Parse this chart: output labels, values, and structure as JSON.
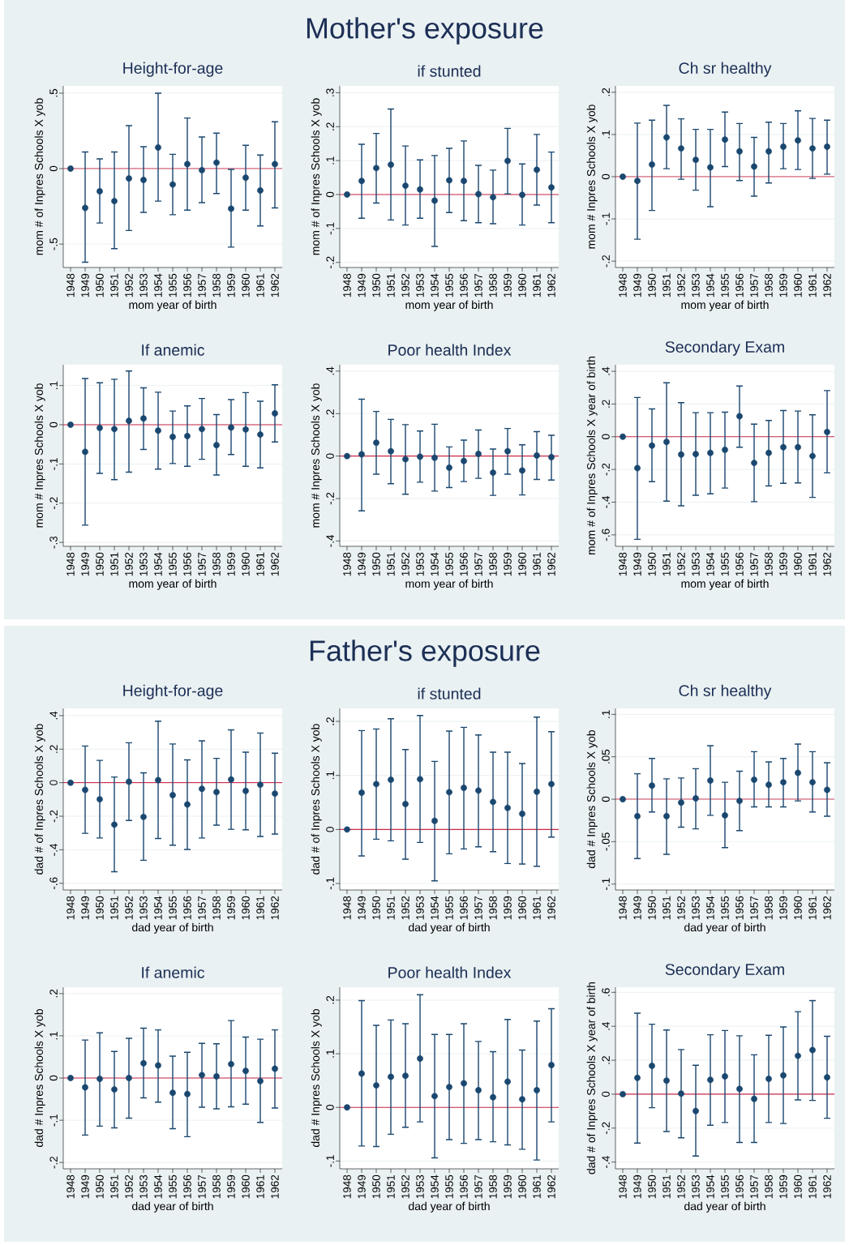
{
  "chart_data": [
    {
      "type": "other",
      "title": "Mother's exposure"
    },
    {
      "type": "scatter",
      "title": "Height-for-age",
      "xlabel": "mom year of birth",
      "ylabel": "mom # of Inpres Schools X yob",
      "categories": [
        "1948",
        "1949",
        "1950",
        "1951",
        "1952",
        "1953",
        "1954",
        "1955",
        "1956",
        "1957",
        "1958",
        "1959",
        "1960",
        "1961",
        "1962"
      ],
      "values": [
        0,
        -0.26,
        -0.15,
        -0.215,
        -0.065,
        -0.075,
        0.14,
        -0.105,
        0.03,
        -0.01,
        0.04,
        -0.265,
        -0.06,
        -0.145,
        0.03
      ],
      "errors": [
        null,
        [
          -0.62,
          0.11
        ],
        [
          -0.36,
          0.065
        ],
        [
          -0.53,
          0.11
        ],
        [
          -0.41,
          0.285
        ],
        [
          -0.29,
          0.145
        ],
        [
          -0.215,
          0.5
        ],
        [
          -0.305,
          0.095
        ],
        [
          -0.275,
          0.335
        ],
        [
          -0.225,
          0.21
        ],
        [
          -0.165,
          0.235
        ],
        [
          -0.52,
          -0.005
        ],
        [
          -0.275,
          0.155
        ],
        [
          -0.38,
          0.09
        ],
        [
          -0.26,
          0.31
        ]
      ],
      "color": "#1a476f",
      "marker": "circle",
      "ylim": [
        -0.655,
        0.548
      ],
      "yticks": [
        {
          "value": -0.5,
          "label": "-.5"
        },
        0,
        {
          "value": 0.5,
          "label": ".5"
        }
      ],
      "grid": "y",
      "ref_lines": [
        {
          "axis": "y",
          "value": 0,
          "color": "#cc2a48"
        }
      ]
    },
    {
      "type": "scatter",
      "title": "if stunted",
      "xlabel": "mom year of birth",
      "ylabel": "mom # of Inpres Schools X yob",
      "categories": [
        "1948",
        "1949",
        "1950",
        "1951",
        "1952",
        "1953",
        "1954",
        "1955",
        "1956",
        "1957",
        "1958",
        "1959",
        "1960",
        "1961",
        "1962"
      ],
      "values": [
        0,
        0.04,
        0.078,
        0.088,
        0.026,
        0.015,
        -0.018,
        0.042,
        0.04,
        0.001,
        -0.008,
        0.099,
        -0.001,
        0.073,
        0.021
      ],
      "errors": [
        null,
        [
          -0.07,
          0.148
        ],
        [
          -0.025,
          0.18
        ],
        [
          -0.075,
          0.252
        ],
        [
          -0.09,
          0.143
        ],
        [
          -0.07,
          0.102
        ],
        [
          -0.153,
          0.115
        ],
        [
          -0.053,
          0.136
        ],
        [
          -0.077,
          0.158
        ],
        [
          -0.083,
          0.086
        ],
        [
          -0.086,
          0.072
        ],
        [
          0.002,
          0.195
        ],
        [
          -0.09,
          0.09
        ],
        [
          -0.031,
          0.177
        ],
        [
          -0.083,
          0.125
        ]
      ],
      "color": "#1a476f",
      "marker": "circle",
      "ylim": [
        -0.215,
        0.32
      ],
      "yticks": [
        {
          "value": -0.2,
          "label": "-.2"
        },
        {
          "value": -0.1,
          "label": "-.1"
        },
        0,
        {
          "value": 0.1,
          "label": ".1"
        },
        {
          "value": 0.2,
          "label": ".2"
        },
        {
          "value": 0.3,
          "label": ".3"
        }
      ],
      "grid": "y",
      "ref_lines": [
        {
          "axis": "y",
          "value": 0,
          "color": "#cc2a48"
        }
      ]
    },
    {
      "type": "scatter",
      "title": "Ch sr healthy",
      "xlabel": "mom year of birth",
      "ylabel": "mom # Inpres Schools X yob",
      "categories": [
        "1948",
        "1949",
        "1950",
        "1951",
        "1952",
        "1953",
        "1954",
        "1955",
        "1956",
        "1957",
        "1958",
        "1959",
        "1960",
        "1961",
        "1962"
      ],
      "values": [
        0,
        -0.01,
        0.029,
        0.093,
        0.067,
        0.04,
        0.022,
        0.088,
        0.06,
        0.024,
        0.06,
        0.071,
        0.086,
        0.067,
        0.071
      ],
      "errors": [
        null,
        [
          -0.148,
          0.127
        ],
        [
          -0.08,
          0.134
        ],
        [
          0.019,
          0.169
        ],
        [
          -0.006,
          0.137
        ],
        [
          -0.032,
          0.112
        ],
        [
          -0.071,
          0.112
        ],
        [
          0.024,
          0.153
        ],
        [
          -0.009,
          0.126
        ],
        [
          -0.046,
          0.093
        ],
        [
          -0.015,
          0.129
        ],
        [
          0.019,
          0.126
        ],
        [
          0.017,
          0.156
        ],
        [
          -0.004,
          0.138
        ],
        [
          0.006,
          0.134
        ]
      ],
      "color": "#1a476f",
      "marker": "circle",
      "ylim": [
        -0.215,
        0.215
      ],
      "yticks": [
        {
          "value": -0.2,
          "label": "-.2"
        },
        {
          "value": -0.1,
          "label": "-.1"
        },
        0,
        {
          "value": 0.1,
          "label": ".1"
        },
        {
          "value": 0.2,
          "label": ".2"
        }
      ],
      "grid": "y",
      "ref_lines": [
        {
          "axis": "y",
          "value": 0,
          "color": "#cc2a48"
        }
      ]
    },
    {
      "type": "scatter",
      "title": "If anemic",
      "xlabel": "mom year of birth",
      "ylabel": "mom # Inpres Schools X yob",
      "categories": [
        "1948",
        "1949",
        "1950",
        "1951",
        "1952",
        "1953",
        "1954",
        "1955",
        "1956",
        "1957",
        "1958",
        "1959",
        "1960",
        "1961",
        "1962"
      ],
      "values": [
        0,
        -0.069,
        -0.008,
        -0.011,
        0.01,
        0.016,
        -0.015,
        -0.031,
        -0.029,
        -0.011,
        -0.052,
        -0.007,
        -0.012,
        -0.025,
        0.029
      ],
      "errors": [
        null,
        [
          -0.256,
          0.118
        ],
        [
          -0.124,
          0.107
        ],
        [
          -0.14,
          0.116
        ],
        [
          -0.121,
          0.137
        ],
        [
          -0.063,
          0.094
        ],
        [
          -0.113,
          0.083
        ],
        [
          -0.099,
          0.035
        ],
        [
          -0.106,
          0.048
        ],
        [
          -0.088,
          0.067
        ],
        [
          -0.128,
          0.026
        ],
        [
          -0.076,
          0.064
        ],
        [
          -0.106,
          0.082
        ],
        [
          -0.11,
          0.06
        ],
        [
          -0.044,
          0.102
        ]
      ],
      "color": "#1a476f",
      "marker": "circle",
      "ylim": [
        -0.31,
        0.153
      ],
      "yticks": [
        {
          "value": -0.3,
          "label": "-.3"
        },
        {
          "value": -0.2,
          "label": "-.2"
        },
        {
          "value": -0.1,
          "label": "-.1"
        },
        0,
        {
          "value": 0.1,
          "label": ".1"
        }
      ],
      "grid": "y",
      "ref_lines": [
        {
          "axis": "y",
          "value": 0,
          "color": "#cc2a48"
        }
      ]
    },
    {
      "type": "scatter",
      "title": "Poor health Index",
      "xlabel": "mom year of birth",
      "ylabel": "mom # Inpres Schools X yob",
      "categories": [
        "1948",
        "1949",
        "1950",
        "1951",
        "1952",
        "1953",
        "1954",
        "1955",
        "1956",
        "1957",
        "1958",
        "1959",
        "1960",
        "1961",
        "1962"
      ],
      "values": [
        0,
        0.008,
        0.063,
        0.023,
        -0.015,
        -0.003,
        -0.008,
        -0.055,
        -0.023,
        0.01,
        -0.078,
        0.023,
        -0.068,
        0.003,
        -0.005
      ],
      "errors": [
        null,
        [
          -0.258,
          0.268
        ],
        [
          -0.085,
          0.21
        ],
        [
          -0.13,
          0.173
        ],
        [
          -0.18,
          0.148
        ],
        [
          -0.123,
          0.118
        ],
        [
          -0.165,
          0.15
        ],
        [
          -0.148,
          0.043
        ],
        [
          -0.12,
          0.075
        ],
        [
          -0.105,
          0.123
        ],
        [
          -0.185,
          0.033
        ],
        [
          -0.085,
          0.13
        ],
        [
          -0.183,
          0.053
        ],
        [
          -0.11,
          0.115
        ],
        [
          -0.113,
          0.098
        ]
      ],
      "color": "#1a476f",
      "marker": "circle",
      "ylim": [
        -0.425,
        0.43
      ],
      "yticks": [
        {
          "value": -0.4,
          "label": "-.4"
        },
        {
          "value": -0.2,
          "label": "-.2"
        },
        0,
        {
          "value": 0.2,
          "label": ".2"
        },
        {
          "value": 0.4,
          "label": ".4"
        }
      ],
      "grid": "y",
      "ref_lines": [
        {
          "axis": "y",
          "value": 0,
          "color": "#cc2a48"
        }
      ]
    },
    {
      "type": "scatter",
      "title": "Secondary Exam",
      "xlabel": "mom year of birth",
      "ylabel": "mom # of Inpres Schools X year of birth",
      "categories": [
        "1948",
        "1949",
        "1950",
        "1951",
        "1952",
        "1953",
        "1954",
        "1955",
        "1956",
        "1957",
        "1958",
        "1959",
        "1960",
        "1961",
        "1962"
      ],
      "values": [
        0,
        -0.192,
        -0.054,
        -0.032,
        -0.109,
        -0.106,
        -0.099,
        -0.08,
        0.125,
        -0.16,
        -0.099,
        -0.064,
        -0.064,
        -0.118,
        0.029
      ],
      "errors": [
        null,
        [
          -0.627,
          0.24
        ],
        [
          -0.275,
          0.17
        ],
        [
          -0.394,
          0.33
        ],
        [
          -0.422,
          0.208
        ],
        [
          -0.358,
          0.147
        ],
        [
          -0.349,
          0.147
        ],
        [
          -0.314,
          0.15
        ],
        [
          -0.064,
          0.31
        ],
        [
          -0.397,
          0.077
        ],
        [
          -0.301,
          0.099
        ],
        [
          -0.285,
          0.16
        ],
        [
          -0.282,
          0.157
        ],
        [
          -0.371,
          0.134
        ],
        [
          -0.221,
          0.282
        ]
      ],
      "color": "#1a476f",
      "marker": "circle",
      "ylim": [
        -0.67,
        0.44
      ],
      "yticks": [
        {
          "value": -0.6,
          "label": "-.6"
        },
        {
          "value": -0.4,
          "label": "-.4"
        },
        {
          "value": -0.2,
          "label": "-.2"
        },
        0,
        {
          "value": 0.2,
          "label": ".2"
        },
        {
          "value": 0.4,
          "label": ".4"
        }
      ],
      "grid": "y",
      "ref_lines": [
        {
          "axis": "y",
          "value": 0,
          "color": "#cc2a48"
        }
      ]
    },
    {
      "type": "other",
      "title": "Father's exposure"
    },
    {
      "type": "scatter",
      "title": "Height-for-age",
      "xlabel": "dad year of birth",
      "ylabel": "dad # of Inpres Schools X yob",
      "categories": [
        "1948",
        "1949",
        "1950",
        "1951",
        "1952",
        "1953",
        "1954",
        "1955",
        "1956",
        "1957",
        "1958",
        "1959",
        "1960",
        "1961",
        "1962"
      ],
      "values": [
        0,
        -0.043,
        -0.099,
        -0.25,
        0.006,
        -0.204,
        0.015,
        -0.074,
        -0.13,
        -0.037,
        -0.056,
        0.019,
        -0.049,
        -0.012,
        -0.065
      ],
      "errors": [
        null,
        [
          -0.302,
          0.219
        ],
        [
          -0.33,
          0.133
        ],
        [
          -0.531,
          0.034
        ],
        [
          -0.225,
          0.238
        ],
        [
          -0.463,
          0.059
        ],
        [
          -0.333,
          0.367
        ],
        [
          -0.373,
          0.231
        ],
        [
          -0.398,
          0.136
        ],
        [
          -0.33,
          0.25
        ],
        [
          -0.253,
          0.145
        ],
        [
          -0.278,
          0.315
        ],
        [
          -0.281,
          0.182
        ],
        [
          -0.321,
          0.296
        ],
        [
          -0.306,
          0.176
        ]
      ],
      "color": "#1a476f",
      "marker": "circle",
      "ylim": [
        -0.64,
        0.443
      ],
      "yticks": [
        {
          "value": -0.6,
          "label": "-.6"
        },
        {
          "value": -0.4,
          "label": "-.4"
        },
        {
          "value": -0.2,
          "label": "-.2"
        },
        0,
        {
          "value": 0.2,
          "label": ".2"
        },
        {
          "value": 0.4,
          "label": ".4"
        }
      ],
      "grid": "y",
      "ref_lines": [
        {
          "axis": "y",
          "value": 0,
          "color": "#cc2a48"
        }
      ]
    },
    {
      "type": "scatter",
      "title": "if stunted",
      "xlabel": "dad year of birth",
      "ylabel": "dad # of Inpres Schools X yob",
      "categories": [
        "1948",
        "1949",
        "1950",
        "1951",
        "1952",
        "1953",
        "1954",
        "1955",
        "1956",
        "1957",
        "1958",
        "1959",
        "1960",
        "1961",
        "1962"
      ],
      "values": [
        0,
        0.068,
        0.084,
        0.092,
        0.047,
        0.093,
        0.016,
        0.069,
        0.077,
        0.072,
        0.051,
        0.04,
        0.029,
        0.07,
        0.084
      ],
      "errors": [
        null,
        [
          -0.049,
          0.183
        ],
        [
          -0.018,
          0.186
        ],
        [
          -0.021,
          0.205
        ],
        [
          -0.055,
          0.148
        ],
        [
          -0.024,
          0.211
        ],
        [
          -0.095,
          0.126
        ],
        [
          -0.045,
          0.182
        ],
        [
          -0.036,
          0.189
        ],
        [
          -0.032,
          0.175
        ],
        [
          -0.041,
          0.143
        ],
        [
          -0.063,
          0.143
        ],
        [
          -0.064,
          0.122
        ],
        [
          -0.068,
          0.208
        ],
        [
          -0.014,
          0.181
        ]
      ],
      "color": "#1a476f",
      "marker": "circle",
      "ylim": [
        -0.112,
        0.224
      ],
      "yticks": [
        {
          "value": -0.1,
          "label": "-.1"
        },
        0,
        {
          "value": 0.1,
          "label": ".1"
        },
        {
          "value": 0.2,
          "label": ".2"
        }
      ],
      "grid": "y",
      "ref_lines": [
        {
          "axis": "y",
          "value": 0,
          "color": "#cc2a48"
        }
      ]
    },
    {
      "type": "scatter",
      "title": "Ch sr healthy",
      "xlabel": "dad year of birth",
      "ylabel": "dad # Inpres Schools X yob",
      "categories": [
        "1948",
        "1949",
        "1950",
        "1951",
        "1952",
        "1953",
        "1954",
        "1955",
        "1956",
        "1957",
        "1958",
        "1959",
        "1960",
        "1961",
        "1962"
      ],
      "values": [
        0,
        -0.02,
        0.016,
        -0.02,
        -0.004,
        0.001,
        0.022,
        -0.019,
        -0.002,
        0.023,
        0.017,
        0.02,
        0.031,
        0.02,
        0.011
      ],
      "errors": [
        null,
        [
          -0.07,
          0.03
        ],
        [
          -0.015,
          0.048
        ],
        [
          -0.065,
          0.024
        ],
        [
          -0.033,
          0.025
        ],
        [
          -0.035,
          0.036
        ],
        [
          -0.019,
          0.063
        ],
        [
          -0.057,
          0.02
        ],
        [
          -0.037,
          0.033
        ],
        [
          -0.009,
          0.056
        ],
        [
          -0.009,
          0.044
        ],
        [
          -0.009,
          0.048
        ],
        [
          -0.002,
          0.065
        ],
        [
          -0.015,
          0.056
        ],
        [
          -0.02,
          0.043
        ]
      ],
      "color": "#1a476f",
      "marker": "circle",
      "ylim": [
        -0.107,
        0.107
      ],
      "yticks": [
        {
          "value": -0.1,
          "label": "-.1"
        },
        {
          "value": -0.05,
          "label": "-.05"
        },
        0,
        {
          "value": 0.05,
          "label": ".05"
        },
        {
          "value": 0.1,
          "label": ".1"
        }
      ],
      "grid": "y",
      "ref_lines": [
        {
          "axis": "y",
          "value": 0,
          "color": "#cc2a48"
        }
      ]
    },
    {
      "type": "scatter",
      "title": "If anemic",
      "xlabel": "dad year of birth",
      "ylabel": "dad # Inpres Schools X yob",
      "categories": [
        "1948",
        "1949",
        "1950",
        "1951",
        "1952",
        "1953",
        "1954",
        "1955",
        "1956",
        "1957",
        "1958",
        "1959",
        "1960",
        "1961",
        "1962"
      ],
      "values": [
        0,
        -0.022,
        -0.002,
        -0.027,
        0,
        0.035,
        0.03,
        -0.035,
        -0.038,
        0.007,
        0.004,
        0.033,
        0.017,
        -0.007,
        0.022
      ],
      "errors": [
        null,
        [
          -0.135,
          0.09
        ],
        [
          -0.114,
          0.107
        ],
        [
          -0.118,
          0.063
        ],
        [
          -0.095,
          0.094
        ],
        [
          -0.047,
          0.118
        ],
        [
          -0.057,
          0.114
        ],
        [
          -0.12,
          0.052
        ],
        [
          -0.139,
          0.061
        ],
        [
          -0.069,
          0.082
        ],
        [
          -0.073,
          0.081
        ],
        [
          -0.068,
          0.136
        ],
        [
          -0.062,
          0.097
        ],
        [
          -0.105,
          0.092
        ],
        [
          -0.071,
          0.114
        ]
      ],
      "color": "#1a476f",
      "marker": "circle",
      "ylim": [
        -0.215,
        0.215
      ],
      "yticks": [
        {
          "value": -0.2,
          "label": "-.2"
        },
        {
          "value": -0.1,
          "label": "-.1"
        },
        0,
        {
          "value": 0.1,
          "label": ".1"
        },
        {
          "value": 0.2,
          "label": ".2"
        }
      ],
      "grid": "y",
      "ref_lines": [
        {
          "axis": "y",
          "value": 0,
          "color": "#cc2a48"
        }
      ]
    },
    {
      "type": "scatter",
      "title": "Poor health Index",
      "xlabel": "dad year of birth",
      "ylabel": "dad # Inpres Schools X yob",
      "categories": [
        "1948",
        "1949",
        "1950",
        "1951",
        "1952",
        "1953",
        "1954",
        "1955",
        "1956",
        "1957",
        "1958",
        "1959",
        "1960",
        "1961",
        "1962"
      ],
      "values": [
        0,
        0.063,
        0.041,
        0.057,
        0.059,
        0.091,
        0.021,
        0.038,
        0.045,
        0.032,
        0.019,
        0.048,
        0.015,
        0.032,
        0.079
      ],
      "errors": [
        null,
        [
          -0.072,
          0.199
        ],
        [
          -0.073,
          0.153
        ],
        [
          -0.05,
          0.163
        ],
        [
          -0.037,
          0.156
        ],
        [
          -0.027,
          0.21
        ],
        [
          -0.094,
          0.136
        ],
        [
          -0.06,
          0.136
        ],
        [
          -0.067,
          0.156
        ],
        [
          -0.06,
          0.123
        ],
        [
          -0.064,
          0.104
        ],
        [
          -0.07,
          0.164
        ],
        [
          -0.078,
          0.107
        ],
        [
          -0.098,
          0.161
        ],
        [
          -0.027,
          0.184
        ]
      ],
      "color": "#1a476f",
      "marker": "circle",
      "ylim": [
        -0.1145,
        0.224
      ],
      "yticks": [
        {
          "value": -0.1,
          "label": "-.1"
        },
        0,
        {
          "value": 0.1,
          "label": ".1"
        },
        {
          "value": 0.2,
          "label": ".2"
        }
      ],
      "grid": "y",
      "ref_lines": [
        {
          "axis": "y",
          "value": 0,
          "color": "#cc2a48"
        }
      ]
    },
    {
      "type": "scatter",
      "title": "Secondary Exam",
      "xlabel": "dad year of birth",
      "ylabel": "dad # of Inpres Schools X year of birth",
      "categories": [
        "1948",
        "1949",
        "1950",
        "1951",
        "1952",
        "1953",
        "1954",
        "1955",
        "1956",
        "1957",
        "1958",
        "1959",
        "1960",
        "1961",
        "1962"
      ],
      "values": [
        0,
        0.096,
        0.167,
        0.08,
        0.003,
        -0.099,
        0.084,
        0.105,
        0.031,
        -0.028,
        0.09,
        0.111,
        0.226,
        0.26,
        0.099
      ],
      "errors": [
        null,
        [
          -0.288,
          0.477
        ],
        [
          -0.08,
          0.412
        ],
        [
          -0.22,
          0.378
        ],
        [
          -0.257,
          0.263
        ],
        [
          -0.365,
          0.17
        ],
        [
          -0.183,
          0.35
        ],
        [
          -0.167,
          0.375
        ],
        [
          -0.285,
          0.344
        ],
        [
          -0.285,
          0.232
        ],
        [
          -0.167,
          0.347
        ],
        [
          -0.173,
          0.396
        ],
        [
          -0.034,
          0.486
        ],
        [
          -0.037,
          0.551
        ],
        [
          -0.142,
          0.341
        ]
      ],
      "color": "#1a476f",
      "marker": "circle",
      "ylim": [
        -0.44,
        0.63
      ],
      "yticks": [
        {
          "value": -0.4,
          "label": "-.4"
        },
        {
          "value": -0.2,
          "label": "-.2"
        },
        0,
        {
          "value": 0.2,
          "label": ".2"
        },
        {
          "value": 0.4,
          "label": ".4"
        },
        {
          "value": 0.6,
          "label": ".6"
        }
      ],
      "grid": "y",
      "ref_lines": [
        {
          "axis": "y",
          "value": 0,
          "color": "#cc2a48"
        }
      ]
    }
  ]
}
